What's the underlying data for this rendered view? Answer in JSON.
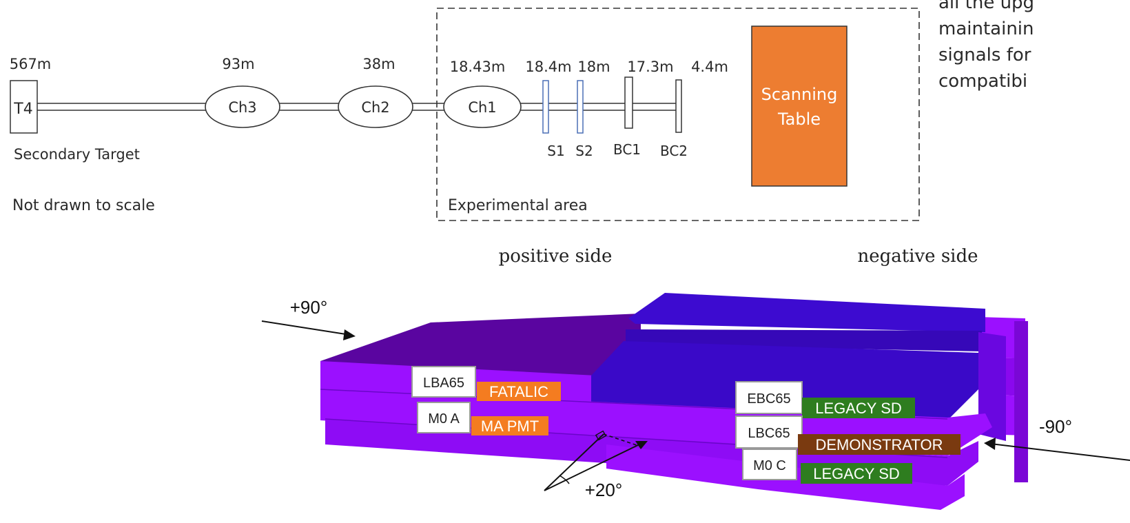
{
  "beamline": {
    "distances": [
      "567m",
      "93m",
      "38m",
      "18.43m",
      "18.4m",
      "18m",
      "17.3m",
      "4.4m"
    ],
    "target_label": "T4",
    "chambers": [
      "Ch3",
      "Ch2",
      "Ch1"
    ],
    "counters": [
      "S1",
      "S2",
      "BC1",
      "BC2"
    ],
    "secondary_target": "Secondary Target",
    "not_to_scale": "Not drawn to scale",
    "experimental_area": "Experimental area",
    "scanning_table_line1": "Scanning",
    "scanning_table_line2": "Table",
    "side_text": [
      "all the upg",
      "maintainin",
      "signals for",
      "compatibi"
    ]
  },
  "detector": {
    "positive_side": "positive side",
    "negative_side": "negative side",
    "angle_plus90": "+90°",
    "angle_minus90": "-90°",
    "angle_plus20": "+20°",
    "modules": [
      {
        "id": "LBA65",
        "tag": "FATALIC",
        "tag_color": "#f47c20"
      },
      {
        "id": "M0 A",
        "tag": "MA PMT",
        "tag_color": "#f47c20"
      },
      {
        "id": "EBC65",
        "tag": "LEGACY SD",
        "tag_color": "#2e7d1f"
      },
      {
        "id": "LBC65",
        "tag": "DEMONSTRATOR",
        "tag_color": "#7a3a10"
      },
      {
        "id": "M0 C",
        "tag": "LEGACY SD",
        "tag_color": "#2e7d1f"
      }
    ]
  },
  "colors": {
    "scanning_table": "#ed7d31",
    "violet_light": "#9b10ff",
    "violet_dark": "#5a05a0",
    "blue_violet": "#3d0bd0"
  }
}
